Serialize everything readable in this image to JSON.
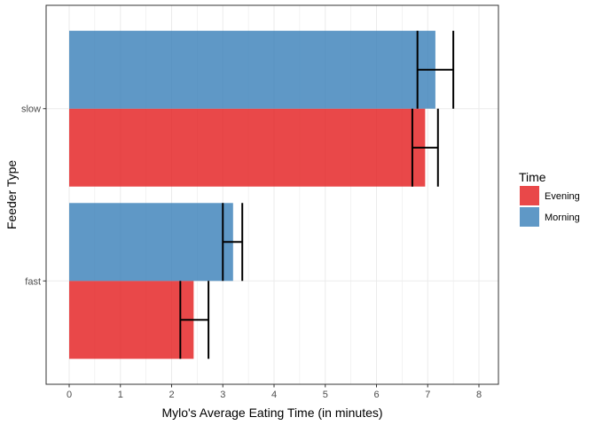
{
  "chart_data": {
    "type": "bar",
    "orientation": "horizontal",
    "categories": [
      "fast",
      "slow"
    ],
    "series": [
      {
        "name": "Evening",
        "color": "#E41A1C",
        "values": [
          2.43,
          6.95
        ],
        "error_low": [
          2.17,
          6.7
        ],
        "error_high": [
          2.72,
          7.2
        ]
      },
      {
        "name": "Morning",
        "color": "#377EB8",
        "values": [
          3.2,
          7.15
        ],
        "error_low": [
          3.0,
          6.8
        ],
        "error_high": [
          3.38,
          7.5
        ]
      }
    ],
    "xlabel": "Mylo's Average Eating Time (in minutes)",
    "ylabel": "Feeder Type",
    "xlim": [
      0,
      8
    ],
    "x_ticks": [
      "0",
      "1",
      "2",
      "3",
      "4",
      "5",
      "6",
      "7",
      "8"
    ],
    "grid": true,
    "legend": {
      "title": "Time",
      "position": "right"
    }
  }
}
